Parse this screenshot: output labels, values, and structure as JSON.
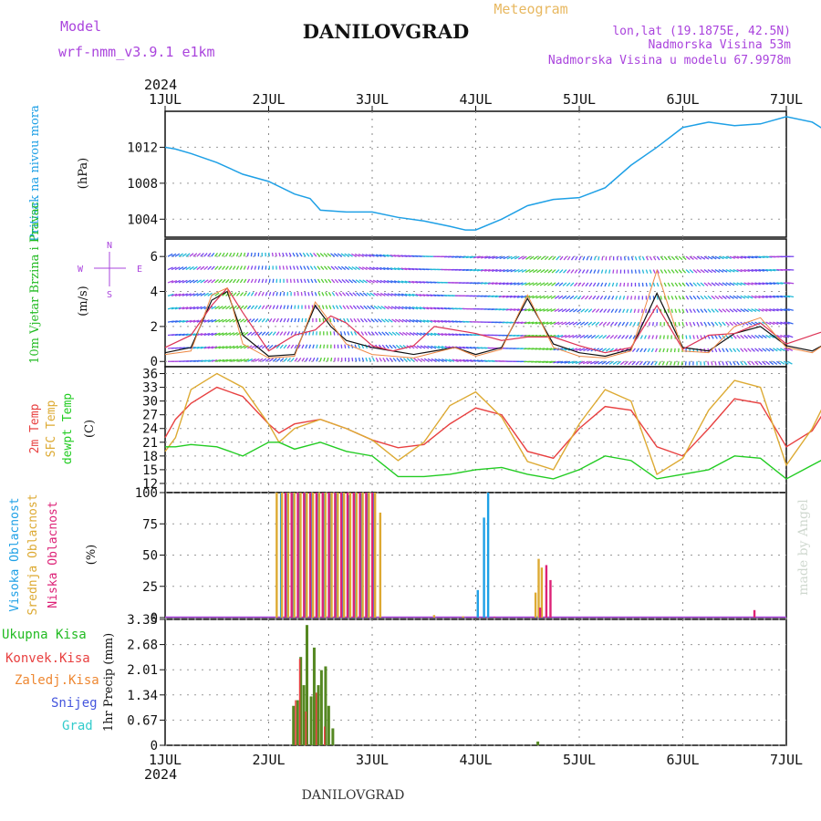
{
  "header": {
    "model_label": "Model",
    "model_name": "wrf-nmm_v3.9.1  e1km",
    "title": "DANILOVGRAD",
    "meteogram": "Meteogram",
    "lonlat": "lon,lat (19.1875E, 42.5N)",
    "elevation": "Nadmorska Visina 53m",
    "model_elevation": "Nadmorska Visina u modelu 67.9978m",
    "credit": "made by Angel",
    "footer_title": "DANILOVGRAD"
  },
  "x_axis": {
    "year": "2024",
    "labels": [
      "1JUL",
      "2JUL",
      "3JUL",
      "4JUL",
      "5JUL",
      "6JUL",
      "7JUL"
    ]
  },
  "colors": {
    "pressure": "#1ea0e6",
    "wind_label": "#22bb22",
    "temp2m": "#e84040",
    "sfc": "#ddaa33",
    "dew": "#22cc22",
    "high": "#1ea0e6",
    "mid": "#ddaa33",
    "low": "#dd2277",
    "purple": "#aa44dd"
  },
  "chart_data": [
    {
      "type": "line",
      "name": "pressure",
      "ylabel_colored": "Pritisak na nivou mora",
      "ylabel_unit": "(hPa)",
      "ylim": [
        1002,
        1016
      ],
      "yticks": [
        1004,
        1008,
        1012
      ],
      "x_days": [
        0,
        0.1,
        0.25,
        0.5,
        0.75,
        1.0,
        1.25,
        1.4,
        1.5,
        1.75,
        2.0,
        2.25,
        2.5,
        2.75,
        2.9,
        3.0,
        3.25,
        3.5,
        3.75,
        4.0,
        4.25,
        4.5,
        4.75,
        5.0,
        5.25,
        5.5,
        5.75,
        6.0,
        6.25,
        6.5,
        6.75,
        7.0
      ],
      "y": [
        1012,
        1011.8,
        1011.3,
        1010.3,
        1009,
        1008.2,
        1006.8,
        1006.3,
        1005,
        1004.8,
        1004.8,
        1004.2,
        1003.8,
        1003.2,
        1002.8,
        1002.8,
        1004,
        1005.5,
        1006.2,
        1006.4,
        1007.5,
        1010.0,
        1012.0,
        1014.2,
        1014.8,
        1014.4,
        1014.6,
        1015.4,
        1014.8,
        1013.0,
        1013.4,
        1012.9
      ]
    },
    {
      "type": "vector",
      "name": "wind",
      "ylabel_colored": "10m Vjetar Brzina i Pravac",
      "ylabel_unit": "(m/s)",
      "compass": [
        "N",
        "W",
        "E",
        "S"
      ],
      "ylim": [
        -0.3,
        7
      ],
      "yticks": [
        0,
        2,
        4,
        6
      ],
      "x_days": [
        0,
        0.25,
        0.45,
        0.6,
        0.75,
        1.0,
        1.25,
        1.45,
        1.6,
        1.75,
        2.0,
        2.2,
        2.4,
        2.6,
        2.8,
        3.0,
        3.25,
        3.5,
        3.75,
        4.0,
        4.25,
        4.5,
        4.75,
        5.0,
        5.25,
        5.5,
        5.75,
        6.0,
        6.25,
        6.5,
        6.75,
        7.0
      ],
      "speed": [
        0.5,
        0.8,
        3.5,
        4.0,
        1.5,
        0.3,
        0.4,
        3.2,
        2.0,
        1.2,
        0.8,
        0.6,
        0.4,
        0.6,
        0.8,
        0.4,
        0.8,
        3.6,
        1.0,
        0.5,
        0.3,
        0.7,
        3.9,
        0.8,
        0.6,
        1.6,
        2.0,
        0.9,
        0.6,
        1.4,
        1.2,
        0.8
      ],
      "gust": [
        0.8,
        1.5,
        3.2,
        4.2,
        2.8,
        0.6,
        1.5,
        1.8,
        2.6,
        2.2,
        0.9,
        0.6,
        0.9,
        2.0,
        1.8,
        1.6,
        1.2,
        1.4,
        1.4,
        0.9,
        0.5,
        0.8,
        3.2,
        0.7,
        1.5,
        1.6,
        2.2,
        1.0,
        1.5,
        2.0,
        1.5,
        1.0
      ],
      "max_speed": [
        0.4,
        0.6,
        3.8,
        4.2,
        1.0,
        0.2,
        0.3,
        3.4,
        2.2,
        1.0,
        0.4,
        0.3,
        0.2,
        0.5,
        0.8,
        0.3,
        0.7,
        3.8,
        0.8,
        0.3,
        0.2,
        0.6,
        5.2,
        0.6,
        0.5,
        2.0,
        2.5,
        0.8,
        0.5,
        1.5,
        1.2,
        0.6
      ]
    },
    {
      "type": "line",
      "name": "temperature",
      "ylabel_lines": [
        "2m Temp",
        "SFC Temp",
        "dewpt Temp"
      ],
      "ylabel_unit": "(C)",
      "ylim": [
        10,
        37.5
      ],
      "yticks": [
        12,
        15,
        18,
        21,
        24,
        27,
        30,
        33,
        36
      ],
      "x_days": [
        0,
        0.1,
        0.25,
        0.5,
        0.75,
        1.0,
        1.1,
        1.25,
        1.5,
        1.75,
        2.0,
        2.25,
        2.5,
        2.75,
        3.0,
        3.25,
        3.5,
        3.75,
        4.0,
        4.25,
        4.5,
        4.75,
        5.0,
        5.25,
        5.5,
        5.75,
        6.0,
        6.25,
        6.5,
        6.75,
        7.0
      ],
      "series": [
        {
          "key": "t2m",
          "values": [
            22,
            26,
            29.5,
            33,
            31,
            25,
            23,
            25,
            26,
            24,
            21.5,
            19.8,
            20.5,
            25.0,
            28.5,
            27,
            19,
            17.5,
            24,
            28.8,
            28,
            20,
            18,
            24,
            30.5,
            29.5,
            20,
            23.5,
            32.5,
            31.0,
            23.2
          ]
        },
        {
          "key": "sfc",
          "values": [
            19,
            22,
            32.5,
            36,
            33,
            25,
            21,
            24,
            26,
            24,
            21.5,
            17,
            21.0,
            29.0,
            32,
            26.5,
            16.8,
            15,
            25,
            32.5,
            30,
            14,
            17.5,
            28,
            34.5,
            33,
            16,
            24,
            35.5,
            33.5,
            18.0
          ]
        },
        {
          "key": "dew",
          "values": [
            20,
            20,
            20.5,
            20,
            18,
            21,
            21,
            19.5,
            21,
            19,
            18.0,
            13.5,
            13.5,
            14.0,
            15,
            15.5,
            14.0,
            13,
            15,
            18.0,
            17,
            13,
            14,
            15,
            18,
            17.5,
            13,
            16,
            19,
            18.5,
            17.0
          ]
        }
      ]
    },
    {
      "type": "bar",
      "name": "cloud",
      "ylabel_lines": [
        "Visoka Oblacnost",
        "Srednja Oblacnost",
        "Niska Oblacnost"
      ],
      "ylabel_unit": "(%)",
      "ylim": [
        0,
        100
      ],
      "yticks": [
        0,
        25,
        50,
        75,
        100
      ],
      "series": [
        {
          "key": "high",
          "x": [
            1.12,
            1.18,
            1.24,
            1.3,
            1.36,
            1.42,
            1.48,
            1.54,
            1.6,
            1.66,
            1.72,
            1.78,
            1.84,
            1.9,
            1.96,
            2.02,
            3.02,
            3.08,
            3.12,
            3.6
          ],
          "values": [
            100,
            100,
            100,
            100,
            100,
            100,
            100,
            100,
            100,
            100,
            100,
            98,
            100,
            100,
            100,
            100,
            22,
            80,
            100,
            1
          ]
        },
        {
          "key": "mid",
          "x": [
            1.1,
            1.15,
            1.21,
            1.27,
            1.33,
            1.39,
            1.45,
            1.51,
            1.57,
            1.63,
            1.69,
            1.75,
            1.81,
            1.87,
            1.93,
            1.99,
            2.05,
            2.1,
            2.62,
            2.9,
            3.6,
            3.63,
            3.66
          ],
          "values": [
            100,
            100,
            100,
            100,
            100,
            100,
            100,
            100,
            100,
            100,
            100,
            100,
            100,
            100,
            100,
            100,
            100,
            84,
            2,
            1,
            20,
            47,
            40
          ]
        },
        {
          "key": "low",
          "x": [
            1.14,
            1.2,
            1.26,
            1.32,
            1.38,
            1.44,
            1.5,
            1.56,
            1.62,
            1.68,
            1.74,
            1.8,
            1.86,
            1.92,
            1.98,
            3.16,
            3.6,
            3.66,
            3.7,
            5.67
          ],
          "values": [
            100,
            100,
            100,
            100,
            100,
            100,
            100,
            100,
            100,
            100,
            100,
            100,
            100,
            100,
            100,
            0.5,
            8,
            42,
            30,
            6
          ]
        }
      ]
    },
    {
      "type": "bar",
      "name": "precip",
      "legend": [
        "Ukupna  Kisa",
        "Konvek.Kisa",
        "Zaledj.Kisa",
        "Snijeg",
        "Grad"
      ],
      "ylabel_unit": "1hr Precip (mm)",
      "ylim": [
        0,
        3.35
      ],
      "yticks": [
        0,
        0.67,
        1.34,
        2.01,
        2.68,
        3.35
      ],
      "series": [
        {
          "key": "total",
          "x": [
            1.24,
            1.28,
            1.31,
            1.34,
            1.37,
            1.41,
            1.44,
            1.48,
            1.51,
            1.55,
            1.58,
            1.62,
            3.6
          ],
          "values": [
            1.05,
            1.2,
            2.35,
            1.6,
            3.2,
            1.3,
            2.6,
            1.6,
            2.0,
            2.1,
            1.05,
            0.45,
            0.1
          ]
        },
        {
          "key": "conv",
          "x": [
            1.26,
            1.3,
            1.36,
            1.46,
            1.54
          ],
          "values": [
            1.2,
            2.3,
            0.9,
            1.4,
            0.5
          ]
        }
      ]
    }
  ]
}
